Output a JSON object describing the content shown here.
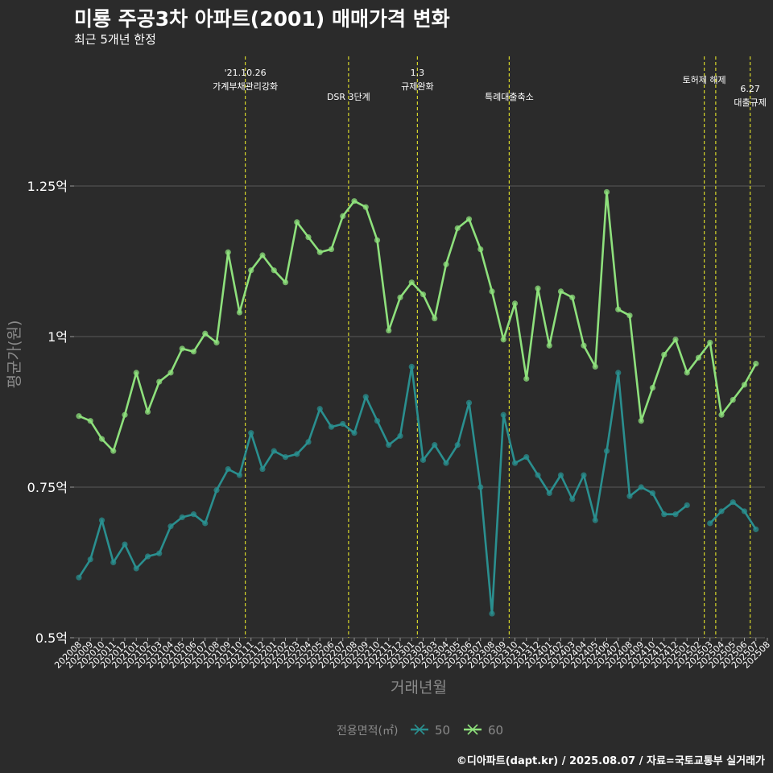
{
  "header": {
    "title": "미룡 주공3차 아파트(2001) 매매가격 변화",
    "subtitle": "최근 5개년 한정"
  },
  "footer": {
    "credit": "©디아파트(dapt.kr) / 2025.08.07 / 자료=국토교통부 실거래가"
  },
  "colors": {
    "background": "#2b2b2b",
    "grid": "#6a6a6a",
    "series_50": "#2a8f8f",
    "series_60": "#8ee07c",
    "event_line": "#d6d62a",
    "text": "#ffffff",
    "axis_title": "#8a8a8a"
  },
  "chart_data": {
    "type": "line",
    "xlabel": "거래년월",
    "ylabel": "평균가(원)",
    "ylim": [
      0.5,
      1.3
    ],
    "yticks": [
      0.5,
      0.75,
      1.0,
      1.25
    ],
    "ytick_labels": [
      "0.5억",
      "0.75억",
      "1억",
      "1.25억"
    ],
    "grid": true,
    "legend": {
      "title": "전용면적(㎡)",
      "position": "bottom"
    },
    "categories": [
      "202008",
      "202009",
      "202010",
      "202011",
      "202012",
      "202101",
      "202102",
      "202103",
      "202104",
      "202105",
      "202106",
      "202107",
      "202108",
      "202109",
      "202110",
      "202111",
      "202112",
      "202201",
      "202202",
      "202203",
      "202204",
      "202205",
      "202206",
      "202207",
      "202208",
      "202209",
      "202210",
      "202211",
      "202212",
      "202301",
      "202302",
      "202303",
      "202304",
      "202305",
      "202306",
      "202307",
      "202308",
      "202309",
      "202310",
      "202311",
      "202312",
      "202401",
      "202402",
      "202403",
      "202404",
      "202405",
      "202406",
      "202407",
      "202408",
      "202409",
      "202410",
      "202411",
      "202412",
      "202501",
      "202502",
      "202503",
      "202504",
      "202505",
      "202506",
      "202507",
      "202508"
    ],
    "series": [
      {
        "name": "50",
        "values": [
          0.6,
          0.63,
          0.695,
          0.625,
          0.655,
          0.615,
          0.635,
          0.64,
          0.685,
          0.7,
          0.705,
          0.69,
          0.745,
          0.78,
          0.77,
          0.84,
          0.78,
          0.81,
          0.8,
          0.805,
          0.825,
          0.88,
          0.85,
          0.855,
          0.84,
          0.9,
          0.86,
          0.82,
          0.835,
          0.95,
          0.795,
          0.82,
          0.79,
          0.82,
          0.89,
          0.75,
          0.54,
          0.87,
          0.79,
          0.8,
          0.77,
          0.74,
          0.77,
          0.73,
          0.77,
          0.695,
          0.81,
          0.94,
          0.735,
          0.75,
          0.74,
          0.705,
          0.705,
          0.72,
          null,
          0.69,
          0.71,
          0.725,
          0.71,
          0.68,
          null
        ]
      },
      {
        "name": "60",
        "values": [
          0.868,
          0.86,
          0.83,
          0.81,
          0.87,
          0.94,
          0.875,
          0.925,
          0.94,
          0.98,
          0.975,
          1.005,
          0.99,
          1.14,
          1.04,
          1.11,
          1.135,
          1.11,
          1.09,
          1.19,
          1.165,
          1.14,
          1.145,
          1.2,
          1.225,
          1.215,
          1.16,
          1.01,
          1.065,
          1.09,
          1.07,
          1.03,
          1.12,
          1.18,
          1.195,
          1.145,
          1.075,
          0.995,
          1.055,
          0.93,
          1.08,
          0.985,
          1.075,
          1.065,
          0.985,
          0.95,
          1.24,
          1.045,
          1.035,
          0.86,
          0.915,
          0.97,
          0.995,
          0.94,
          0.965,
          0.99,
          0.87,
          0.895,
          0.92,
          0.955,
          null
        ]
      }
    ],
    "annotations": [
      {
        "label_lines": [
          "'21.10.26",
          "가계부채관리강화"
        ],
        "x": "202110"
      },
      {
        "label_lines": [
          "DSR 3단계"
        ],
        "x": "202207"
      },
      {
        "label_lines": [
          "1.3",
          "규제완화"
        ],
        "x": "202301"
      },
      {
        "label_lines": [
          "특례대출축소"
        ],
        "x": "202309"
      },
      {
        "label_lines": [
          "토허제 해제"
        ],
        "x": "202502"
      },
      {
        "label_lines": [],
        "x": "202503"
      },
      {
        "label_lines": [
          "6.27",
          "대출규제"
        ],
        "x": "202506"
      }
    ]
  }
}
